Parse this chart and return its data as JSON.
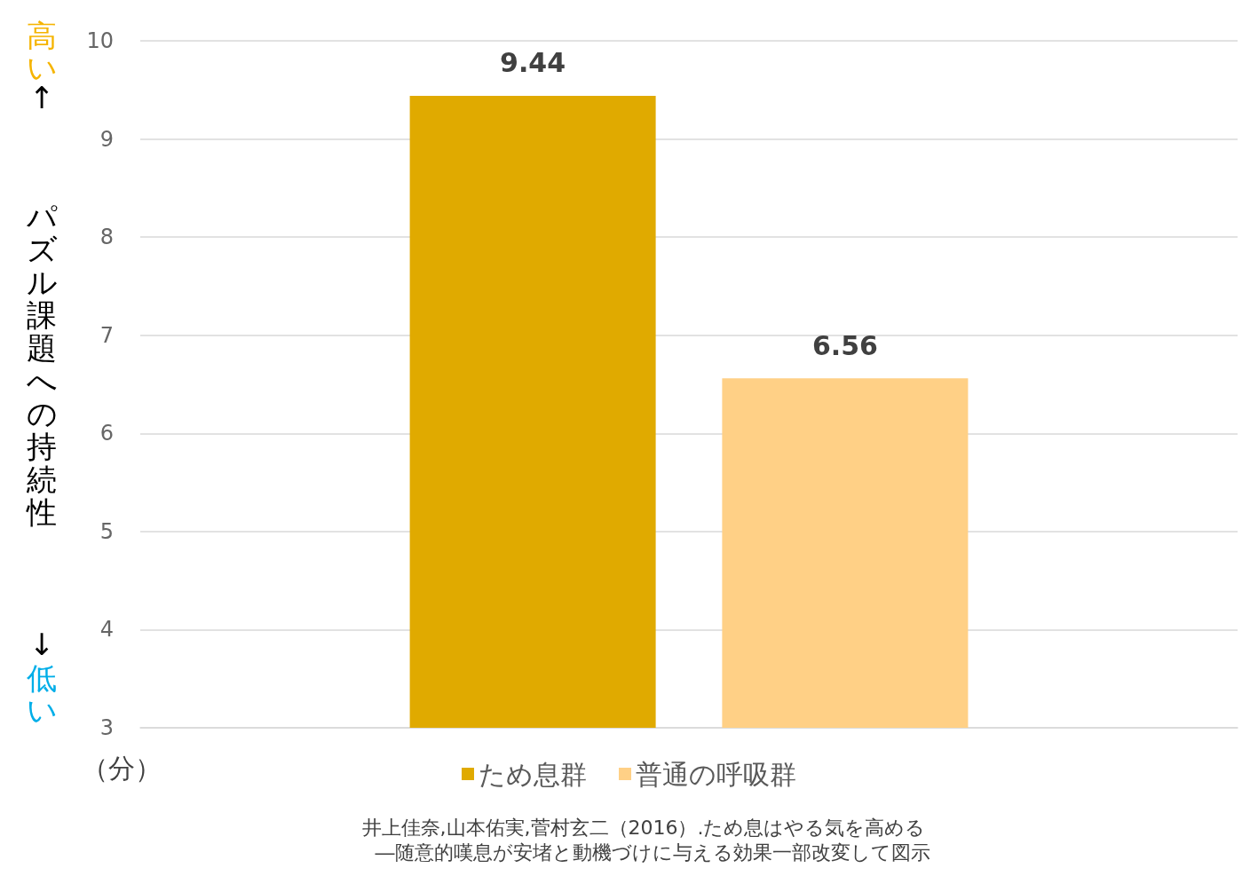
{
  "chart_data": {
    "type": "bar",
    "ylabel": "パズル課題への持続性",
    "categories": [
      null
    ],
    "series": [
      {
        "name": "ため息群",
        "color": "#e0aa00",
        "values": [
          9.44
        ]
      },
      {
        "name": "普通の呼吸群",
        "color": "#ffd086",
        "values": [
          6.56
        ]
      }
    ],
    "ylim": [
      3,
      10
    ],
    "yticks": [
      3,
      4,
      5,
      6,
      7,
      8,
      9,
      10
    ],
    "grid": "y",
    "legend": "bottom",
    "data_labels": true,
    "annotations": [
      "高い",
      "↑",
      "↓",
      "低い",
      "（分）",
      "井上佳奈,山本佑実,菅村玄二（2016）.ため息はやる気を高める",
      "―随意的嘆息が安堵と動機づけに与える効果一部改変して図示"
    ]
  }
}
